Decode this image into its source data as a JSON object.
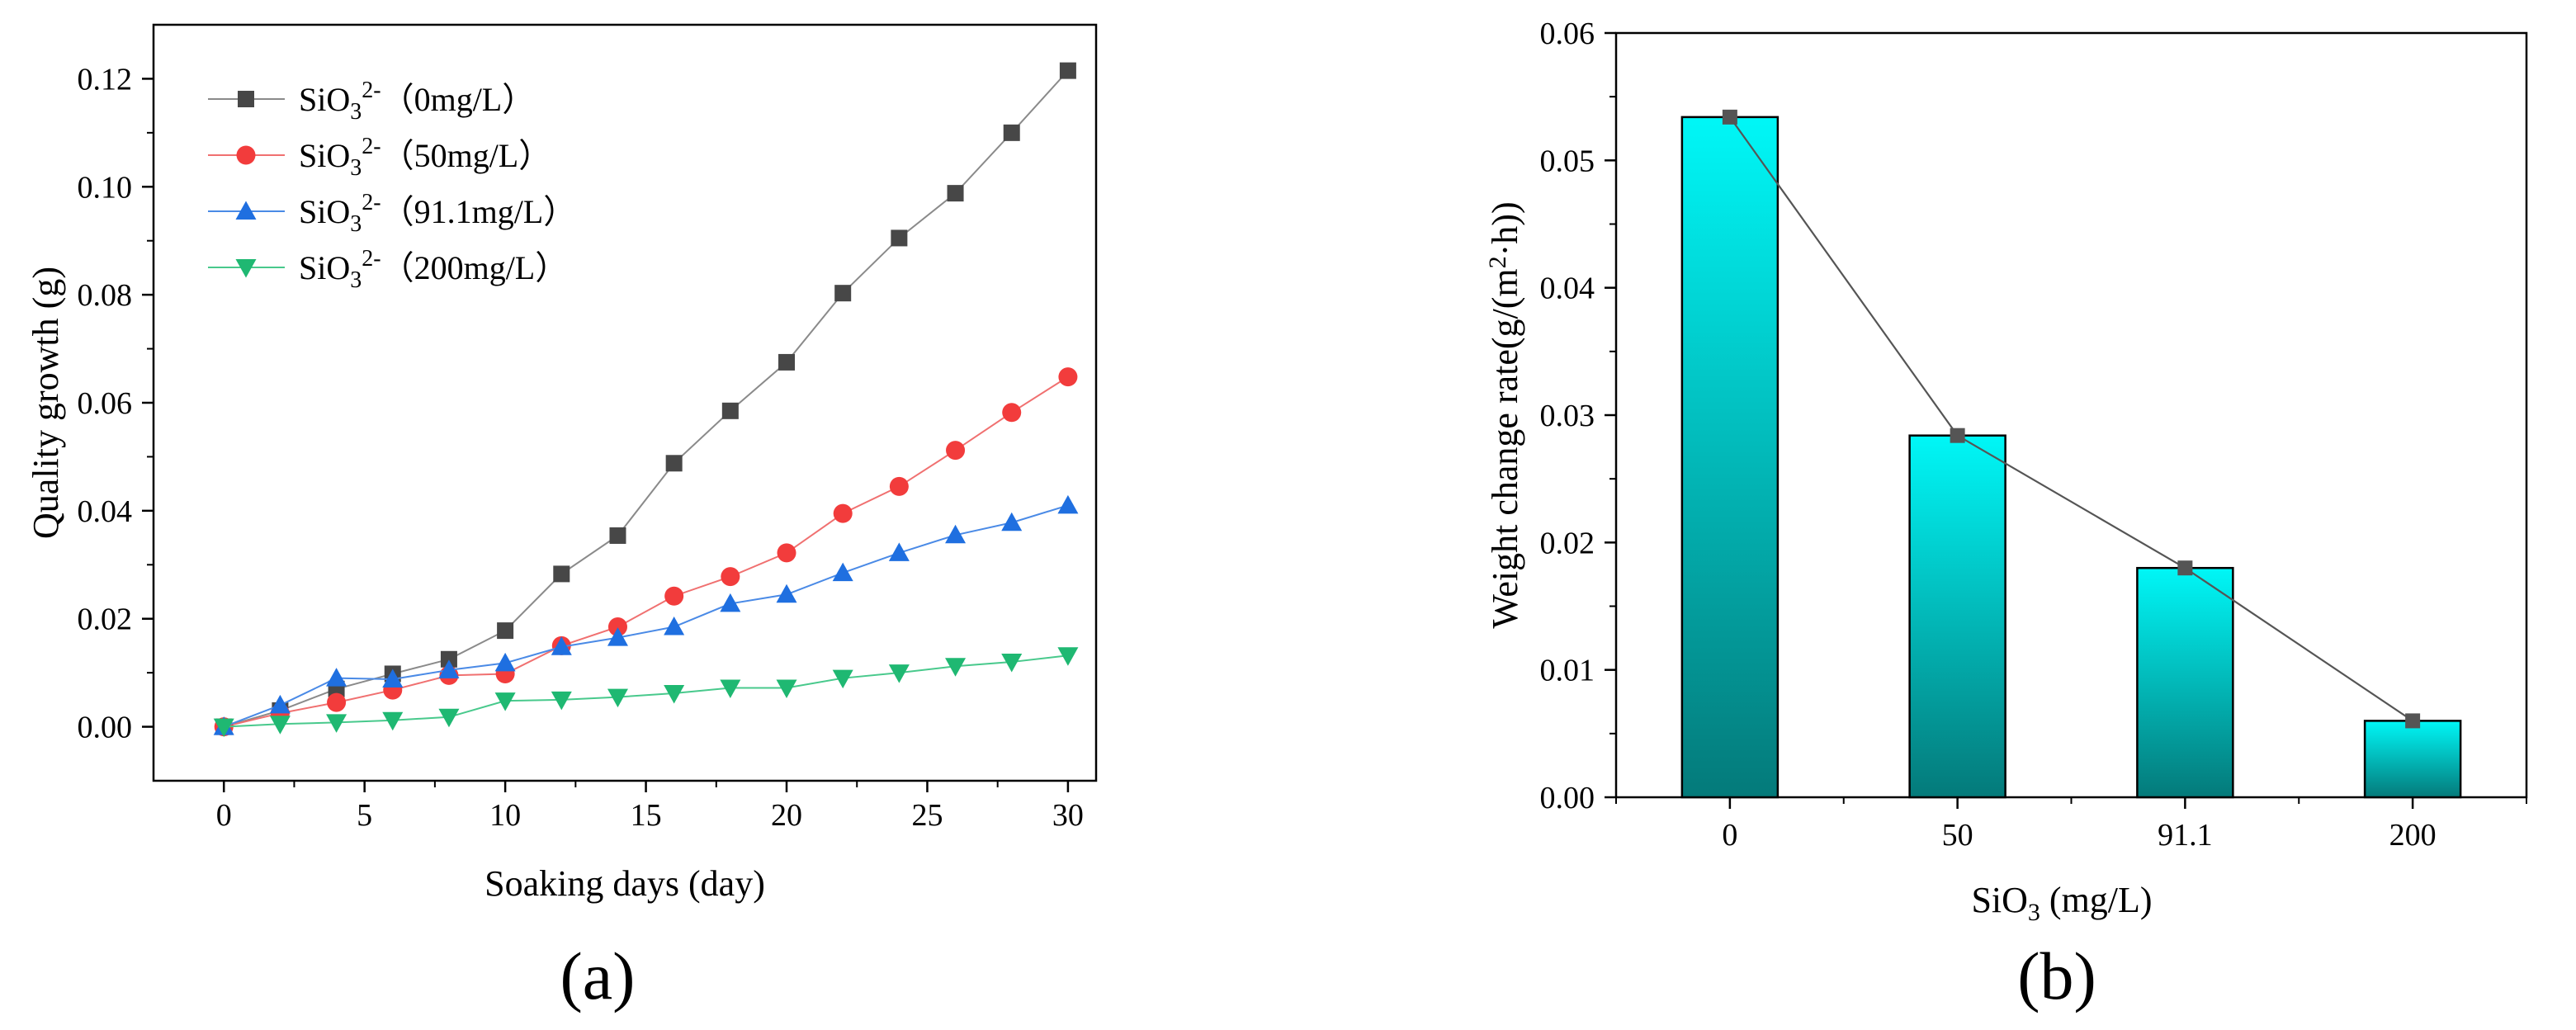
{
  "chart_data": [
    {
      "type": "line",
      "panel_label": "(a)",
      "xlabel": "Soaking days (day)",
      "ylabel": "Quality growth (g)",
      "xlim": [
        -2.5,
        31
      ],
      "ylim": [
        -0.01,
        0.13
      ],
      "xticks": [
        0,
        5,
        10,
        15,
        20,
        25,
        30
      ],
      "xtick_labels": [
        "0",
        "5",
        "10",
        "15",
        "20",
        "25",
        "30"
      ],
      "yticks": [
        0,
        0.02,
        0.04,
        0.06,
        0.08,
        0.1,
        0.12
      ],
      "ytick_labels": [
        "0.00",
        "0.02",
        "0.04",
        "0.06",
        "0.08",
        "0.10",
        "0.12"
      ],
      "legend_position": "top-left",
      "x": [
        0,
        2,
        4,
        6,
        8,
        10,
        12,
        14,
        16,
        18,
        20,
        22,
        24,
        26,
        28,
        30
      ],
      "series": [
        {
          "name": "SiO3 2- (0mg/L)",
          "legend": {
            "base": "SiO",
            "sub": "3",
            "sup": "2-",
            "conc": "（0mg/L）"
          },
          "color": "#474747",
          "line_color": "#8a8a8a",
          "marker": "square",
          "values": [
            0.0,
            0.003,
            0.007,
            0.0098,
            0.0125,
            0.0178,
            0.0283,
            0.0354,
            0.0488,
            0.0585,
            0.0675,
            0.0803,
            0.0905,
            0.0988,
            0.11,
            0.1215
          ]
        },
        {
          "name": "SiO3 2- (50mg/L)",
          "legend": {
            "base": "SiO",
            "sub": "3",
            "sup": "2-",
            "conc": "（50mg/L）"
          },
          "color": "#f23c3c",
          "line_color": "#f07070",
          "marker": "circle",
          "values": [
            0.0,
            0.0025,
            0.0045,
            0.0068,
            0.0095,
            0.0098,
            0.015,
            0.0185,
            0.0242,
            0.0278,
            0.0322,
            0.0395,
            0.0445,
            0.0512,
            0.0582,
            0.0648
          ]
        },
        {
          "name": "SiO3 2- (91.1mg/L)",
          "legend": {
            "base": "SiO",
            "sub": "3",
            "sup": "2-",
            "conc": "（91.1mg/L）"
          },
          "color": "#1f6fe0",
          "line_color": "#4a8ae6",
          "marker": "triangle-up",
          "values": [
            0.0,
            0.004,
            0.009,
            0.0088,
            0.0105,
            0.0118,
            0.0148,
            0.0165,
            0.0185,
            0.0228,
            0.0245,
            0.0285,
            0.0322,
            0.0355,
            0.0378,
            0.041
          ]
        },
        {
          "name": "SiO3 2- (200mg/L)",
          "legend": {
            "base": "SiO",
            "sub": "3",
            "sup": "2-",
            "conc": "（200mg/L）"
          },
          "color": "#1fb872",
          "line_color": "#48c98c",
          "marker": "triangle-down",
          "values": [
            0.0,
            0.0005,
            0.0008,
            0.0012,
            0.0018,
            0.0048,
            0.005,
            0.0055,
            0.0062,
            0.0072,
            0.0072,
            0.009,
            0.01,
            0.0112,
            0.012,
            0.0132
          ]
        }
      ]
    },
    {
      "type": "bar",
      "panel_label": "(b)",
      "xlabel": {
        "base": "SiO",
        "sub": "3",
        "rest": " (mg/L)"
      },
      "ylabel": {
        "before": "Weight change rate(g/(m",
        "sup": "2",
        "after": "·h))"
      },
      "categories": [
        "0",
        "50",
        "91.1",
        "200"
      ],
      "values": [
        0.0534,
        0.0284,
        0.018,
        0.006
      ],
      "ylim": [
        0,
        0.06
      ],
      "yticks": [
        0,
        0.01,
        0.02,
        0.03,
        0.04,
        0.05,
        0.06
      ],
      "ytick_labels": [
        "0.00",
        "0.01",
        "0.02",
        "0.03",
        "0.04",
        "0.05",
        "0.06"
      ],
      "bar_gradient": {
        "top": "#00f7f7",
        "bottom": "#047a7a"
      },
      "overlay_line": {
        "color": "#555555",
        "marker": "square"
      }
    }
  ]
}
